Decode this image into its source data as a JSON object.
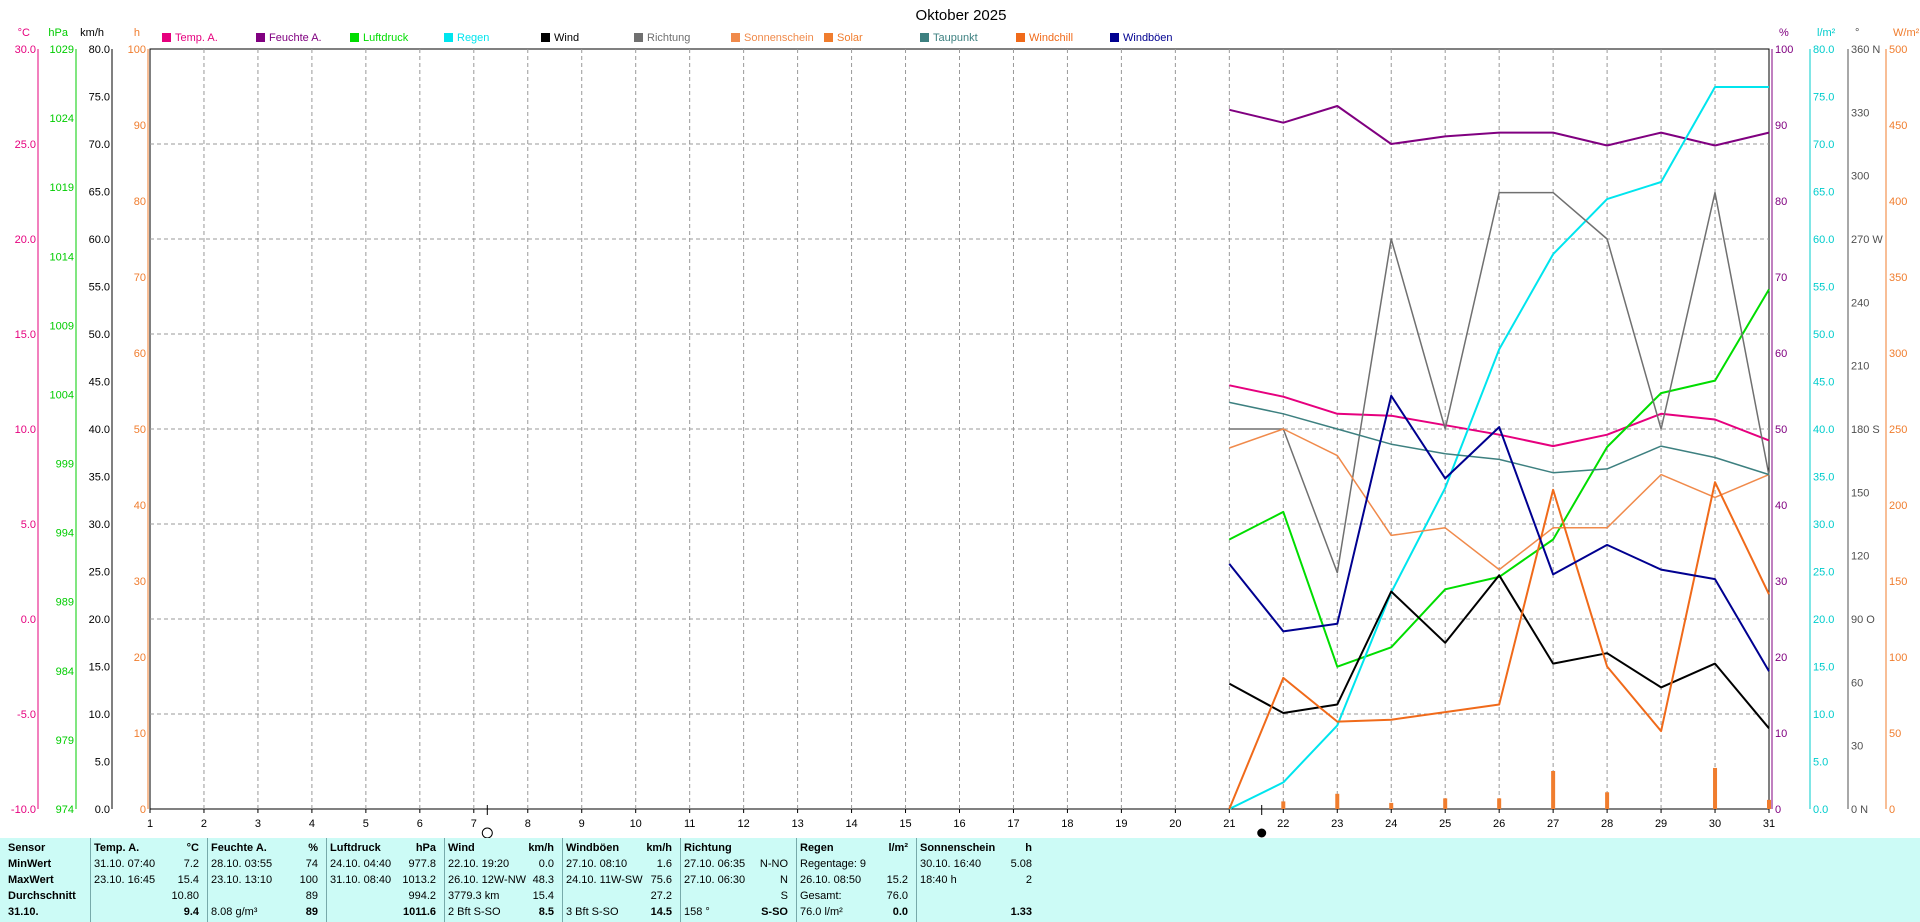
{
  "title": "Oktober 2025",
  "legend": [
    {
      "label": "Temp. A.",
      "color": "#e6007e"
    },
    {
      "label": "Feuchte A.",
      "color": "#800080"
    },
    {
      "label": "Luftdruck",
      "color": "#00dd00"
    },
    {
      "label": "Regen",
      "color": "#00e5ee"
    },
    {
      "label": "Wind",
      "color": "#000000"
    },
    {
      "label": "Richtung",
      "color": "#707070"
    },
    {
      "label": "Sonnenschein",
      "color": "#f08a4b"
    },
    {
      "label": "Solar",
      "color": "#f07d2e"
    },
    {
      "label": "Taupunkt",
      "color": "#3d8080"
    },
    {
      "label": "Windchill",
      "color": "#f06a1a"
    },
    {
      "label": "Windböen",
      "color": "#000090"
    }
  ],
  "axes_left": [
    {
      "unit": "°C",
      "color": "#e6007e",
      "labels": [
        "30.0",
        "25.0",
        "20.0",
        "15.0",
        "10.0",
        "5.0",
        "0.0",
        "-5.0",
        "-10.0"
      ]
    },
    {
      "unit": "hPa",
      "color": "#00cc00",
      "labels": [
        "1029",
        "1024",
        "1019",
        "1014",
        "1009",
        "1004",
        "999",
        "994",
        "989",
        "984",
        "979",
        "974"
      ]
    },
    {
      "unit": "km/h",
      "color": "#000000",
      "labels": [
        "80.0",
        "75.0",
        "70.0",
        "65.0",
        "60.0",
        "55.0",
        "50.0",
        "45.0",
        "40.0",
        "35.0",
        "30.0",
        "25.0",
        "20.0",
        "15.0",
        "10.0",
        "5.0",
        "0.0"
      ]
    },
    {
      "unit": "h",
      "color": "#f07d2e",
      "labels": [
        "100",
        "90",
        "80",
        "70",
        "60",
        "50",
        "40",
        "30",
        "20",
        "10",
        "0"
      ]
    }
  ],
  "axes_right": [
    {
      "unit": "%",
      "color": "#800080",
      "labels": [
        "100",
        "90",
        "80",
        "70",
        "60",
        "50",
        "40",
        "30",
        "20",
        "10",
        "0"
      ]
    },
    {
      "unit": "l/m²",
      "color": "#00cccc",
      "labels": [
        "80.0",
        "75.0",
        "70.0",
        "65.0",
        "60.0",
        "55.0",
        "50.0",
        "45.0",
        "40.0",
        "35.0",
        "30.0",
        "25.0",
        "20.0",
        "15.0",
        "10.0",
        "5.0",
        "0.0"
      ]
    },
    {
      "unit": "°",
      "color": "#505050",
      "labels": [
        "360 N",
        "330",
        "300",
        "270 W",
        "240",
        "210",
        "180 S",
        "150",
        "120",
        "90 O",
        "60",
        "30",
        "0 N"
      ]
    },
    {
      "unit": "W/m²",
      "color": "#f07d2e",
      "labels": [
        "500",
        "450",
        "400",
        "350",
        "300",
        "250",
        "200",
        "150",
        "100",
        "50",
        "0"
      ]
    }
  ],
  "chart_data": {
    "type": "line",
    "title": "Oktober 2025",
    "x": [
      1,
      2,
      3,
      4,
      5,
      6,
      7,
      8,
      9,
      10,
      11,
      12,
      13,
      14,
      15,
      16,
      17,
      18,
      19,
      20,
      21,
      22,
      23,
      24,
      25,
      26,
      27,
      28,
      29,
      30,
      31
    ],
    "xlim": [
      1,
      31
    ],
    "grid": true,
    "legend_position": "top",
    "axes": {
      "temp": {
        "unit": "°C",
        "range": [
          -10,
          30
        ]
      },
      "pressure": {
        "unit": "hPa",
        "range": [
          974,
          1029
        ]
      },
      "wind": {
        "unit": "km/h",
        "range": [
          0,
          80
        ]
      },
      "hours": {
        "unit": "h",
        "range": [
          0,
          100
        ]
      },
      "humidity": {
        "unit": "%",
        "range": [
          0,
          100
        ]
      },
      "rain": {
        "unit": "l/m²",
        "range": [
          0,
          80
        ]
      },
      "direction": {
        "unit": "°",
        "range": [
          0,
          360
        ]
      },
      "solar": {
        "unit": "W/m²",
        "range": [
          0,
          500
        ]
      }
    },
    "series": [
      {
        "name": "Temp. A.",
        "axis": "temp",
        "color": "#e6007e",
        "width": 2,
        "x": [
          21,
          22,
          23,
          24,
          25,
          26,
          27,
          28,
          29,
          30,
          31
        ],
        "values": [
          12.3,
          11.7,
          10.8,
          10.7,
          10.2,
          9.7,
          9.1,
          9.7,
          10.8,
          10.5,
          9.4
        ]
      },
      {
        "name": "Feuchte A.",
        "axis": "humidity",
        "color": "#800080",
        "width": 2,
        "x": [
          21,
          22,
          23,
          24,
          25,
          26,
          27,
          28,
          29,
          30,
          31
        ],
        "values": [
          92,
          90.3,
          92.5,
          87.5,
          88.5,
          89,
          89,
          87.3,
          89,
          87.3,
          89
        ]
      },
      {
        "name": "Luftdruck",
        "axis": "pressure",
        "color": "#00dd00",
        "width": 2,
        "x": [
          21,
          22,
          23,
          24,
          25,
          26,
          27,
          28,
          29,
          30,
          31
        ],
        "values": [
          993.5,
          995.5,
          984.3,
          985.7,
          989.9,
          990.8,
          993.5,
          1000.2,
          1004.1,
          1005.0,
          1011.6
        ]
      },
      {
        "name": "Regen",
        "axis": "rain",
        "color": "#00e5ee",
        "width": 2,
        "x": [
          21,
          22,
          23,
          24,
          25,
          26,
          27,
          28,
          29,
          30,
          31
        ],
        "values": [
          0,
          2.8,
          8.8,
          22.8,
          33.8,
          48.4,
          58.4,
          64.2,
          66.0,
          76.0,
          76.0
        ]
      },
      {
        "name": "Wind",
        "axis": "wind",
        "color": "#000000",
        "width": 2,
        "x": [
          21,
          22,
          23,
          24,
          25,
          26,
          27,
          28,
          29,
          30,
          31
        ],
        "values": [
          13.2,
          10.1,
          11.0,
          22.9,
          17.5,
          24.6,
          15.3,
          16.4,
          12.8,
          15.3,
          8.5
        ]
      },
      {
        "name": "Richtung",
        "axis": "direction",
        "color": "#707070",
        "width": 1.5,
        "x": [
          21,
          22,
          23,
          24,
          25,
          26,
          27,
          28,
          29,
          30,
          31
        ],
        "values": [
          180,
          180,
          112,
          270,
          180,
          292,
          292,
          270,
          180,
          292,
          158
        ]
      },
      {
        "name": "Sonnenschein",
        "axis": "hours",
        "color": "#f08a4b",
        "width": 1.5,
        "x": [
          21,
          22,
          23,
          24,
          25,
          26,
          27,
          28,
          29,
          30,
          31
        ],
        "values": [
          47.5,
          50,
          46.5,
          36,
          37,
          31.5,
          37,
          37,
          44,
          41,
          44
        ]
      },
      {
        "name": "Taupunkt",
        "axis": "temp",
        "color": "#3d8080",
        "width": 1.5,
        "x": [
          21,
          22,
          23,
          24,
          25,
          26,
          27,
          28,
          29,
          30,
          31
        ],
        "values": [
          11.4,
          10.8,
          10.0,
          9.2,
          8.7,
          8.4,
          7.7,
          7.9,
          9.1,
          8.5,
          7.6
        ]
      },
      {
        "name": "Windchill",
        "axis": "temp",
        "color": "#f06a1a",
        "width": 2,
        "x": [
          21,
          22,
          23,
          24,
          25,
          26,
          27,
          28,
          29,
          30,
          31
        ],
        "values": [
          -10,
          -3.1,
          -5.4,
          -5.3,
          -4.9,
          -4.5,
          6.8,
          -2.5,
          -5.9,
          7.2,
          1.3
        ]
      },
      {
        "name": "Windböen",
        "axis": "wind",
        "color": "#000090",
        "width": 2,
        "x": [
          21,
          22,
          23,
          24,
          25,
          26,
          27,
          28,
          29,
          30,
          31
        ],
        "values": [
          25.8,
          18.7,
          19.5,
          43.5,
          34.8,
          40.2,
          24.7,
          27.8,
          25.2,
          24.2,
          14.5
        ]
      }
    ],
    "solar_bars": {
      "name": "Solar",
      "axis": "solar",
      "color": "#f07d2e",
      "x": [
        22,
        23,
        24,
        25,
        26,
        27,
        28,
        30,
        31
      ],
      "values": [
        5,
        10,
        4,
        7,
        7,
        25,
        11,
        27,
        6
      ]
    },
    "moon_phases": [
      {
        "x": 7.25,
        "phase": "full"
      },
      {
        "x": 21.6,
        "phase": "new"
      }
    ]
  },
  "stats": {
    "columns": [
      {
        "rows": [
          {
            "text": "Sensor",
            "bold": true
          },
          {
            "text": "MinWert",
            "bold": true
          },
          {
            "text": "MaxWert",
            "bold": true
          },
          {
            "text": "Durchschnitt",
            "bold": true
          },
          {
            "text": "31.10.",
            "bold": true
          }
        ]
      },
      {
        "header": "Temp. A.",
        "unit": "°C",
        "rows": [
          [
            "31.10.  07:40",
            "7.2"
          ],
          [
            "23.10.  16:45",
            "15.4"
          ],
          [
            "",
            "10.80"
          ],
          [
            "",
            "9.4"
          ]
        ]
      },
      {
        "header": "Feuchte A.",
        "unit": "%",
        "rows": [
          [
            "28.10.  03:55",
            "74"
          ],
          [
            "23.10.  13:10",
            "100"
          ],
          [
            "",
            "89"
          ],
          [
            "8.08 g/m³",
            "89"
          ]
        ]
      },
      {
        "header": "Luftdruck",
        "unit": "hPa",
        "rows": [
          [
            "24.10.  04:40",
            "977.8"
          ],
          [
            "31.10.  08:40",
            "1013.2"
          ],
          [
            "",
            "994.2"
          ],
          [
            "",
            "1011.6"
          ]
        ]
      },
      {
        "header": "Wind",
        "unit": "km/h",
        "rows": [
          [
            "22.10.  19:20",
            "0.0"
          ],
          [
            "26.10.  12W-NW",
            "48.3"
          ],
          [
            "3779.3 km",
            "15.4"
          ],
          [
            "2 Bft S-SO",
            "8.5"
          ]
        ]
      },
      {
        "header": "Windböen",
        "unit": "km/h",
        "rows": [
          [
            "27.10.  08:10",
            "1.6"
          ],
          [
            "24.10.  11W-SW",
            "75.6"
          ],
          [
            "",
            "27.2"
          ],
          [
            "3 Bft S-SO",
            "14.5"
          ]
        ]
      },
      {
        "header": "Richtung",
        "unit": "",
        "rows": [
          [
            "27.10.  06:35",
            "N-NO"
          ],
          [
            "27.10.  06:30",
            "N"
          ],
          [
            "",
            "S"
          ],
          [
            "158 °",
            "S-SO"
          ]
        ]
      },
      {
        "header": "Regen",
        "unit": "l/m²",
        "rows": [
          [
            "Regentage: 9",
            ""
          ],
          [
            "26.10.  08:50",
            "15.2"
          ],
          [
            "Gesamt:",
            "76.0"
          ],
          [
            "76.0 l/m²",
            "0.0"
          ]
        ]
      },
      {
        "header": "Sonnenschein",
        "unit": "h",
        "rows": [
          [
            "30.10.  16:40",
            "5.08"
          ],
          [
            "18:40 h",
            "2"
          ],
          [
            "",
            ""
          ],
          [
            "",
            "1.33"
          ]
        ]
      }
    ]
  }
}
